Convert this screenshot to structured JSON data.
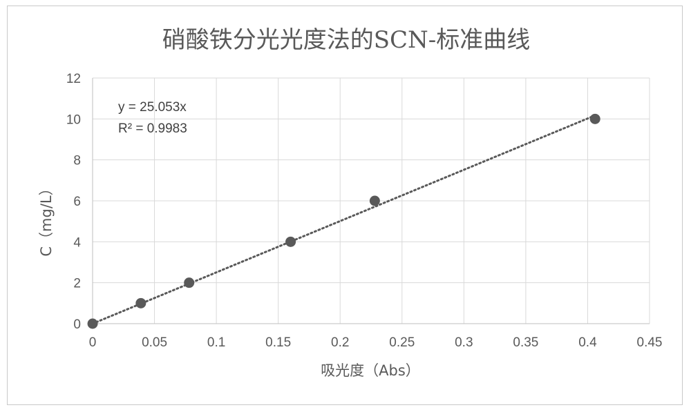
{
  "chart_data": {
    "type": "scatter",
    "title": "硝酸铁分光光度法的SCN-标准曲线",
    "xlabel": "吸光度（Abs）",
    "ylabel": "C（mg/L）",
    "xlim": [
      0,
      0.45
    ],
    "ylim": [
      0,
      12
    ],
    "xticks": [
      0,
      0.05,
      0.1,
      0.15,
      0.2,
      0.25,
      0.3,
      0.35,
      0.4,
      0.45
    ],
    "xtick_labels": [
      "0",
      "0.05",
      "0.1",
      "0.15",
      "0.2",
      "0.25",
      "0.3",
      "0.35",
      "0.4",
      "0.45"
    ],
    "yticks": [
      0,
      2,
      4,
      6,
      8,
      10,
      12
    ],
    "ytick_labels": [
      "0",
      "2",
      "4",
      "6",
      "8",
      "10",
      "12"
    ],
    "grid": true,
    "series": [
      {
        "x": [
          0,
          0.039,
          0.078,
          0.16,
          0.228,
          0.406
        ],
        "y": [
          0,
          1,
          2,
          4,
          6,
          10
        ],
        "color": "#595959"
      }
    ],
    "trendline": {
      "type": "linear",
      "slope": 25.053,
      "intercept": 0,
      "x_range": [
        0,
        0.406
      ],
      "style": "dotted",
      "color": "#595959"
    },
    "annotations": [
      "y = 25.053x",
      "R² = 0.9983"
    ]
  }
}
